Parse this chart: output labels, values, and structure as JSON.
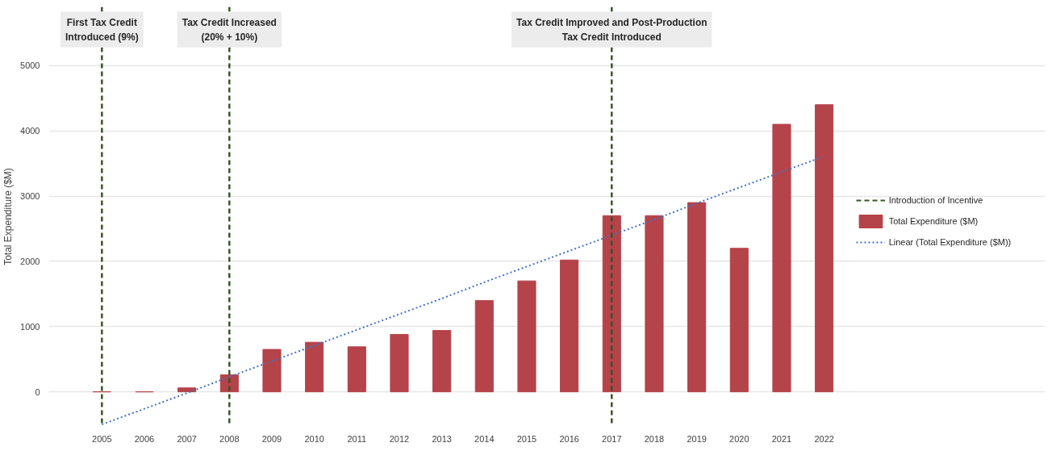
{
  "chart_data": {
    "type": "bar",
    "ylabel": "Total Expenditure ($M)",
    "categories": [
      "2005",
      "2006",
      "2007",
      "2008",
      "2009",
      "2010",
      "2011",
      "2012",
      "2013",
      "2014",
      "2015",
      "2016",
      "2017",
      "2018",
      "2019",
      "2020",
      "2021",
      "2022"
    ],
    "series": [
      {
        "name": "Introduction of Incentive",
        "type": "line",
        "line_style": "dashed",
        "color": "#375623",
        "values": [
          null,
          null,
          null,
          null,
          null,
          null,
          null,
          null,
          null,
          null,
          null,
          null,
          null,
          null,
          null,
          null,
          null,
          null
        ]
      },
      {
        "name": "Total Expenditure ($M)",
        "color": "#b5434a",
        "values": [
          0,
          0,
          60,
          260,
          650,
          760,
          690,
          880,
          940,
          1400,
          1700,
          2020,
          2700,
          2700,
          2900,
          2200,
          4100,
          4400
        ]
      },
      {
        "name": "Linear (Total Expenditure ($M))",
        "type": "line",
        "line_style": "dotted",
        "color": "#4472c4",
        "values": [
          -500,
          -260,
          -20,
          230,
          470,
          710,
          950,
          1190,
          1430,
          1680,
          1920,
          2160,
          2400,
          2640,
          2890,
          3130,
          3370,
          3610
        ]
      }
    ],
    "ylim": [
      -530,
      5900
    ],
    "yticks": [
      0,
      1000,
      2000,
      3000,
      4000,
      5000
    ],
    "grid": "y",
    "legend": "right",
    "ref_lines": [
      {
        "axis": "x",
        "value": "2005",
        "label": "First Tax Credit\nIntroduced (9%)",
        "color": "#375623",
        "line_style": "dashed"
      },
      {
        "axis": "x",
        "value": "2008",
        "label": "Tax Credit Increased\n(20% + 10%)",
        "color": "#375623",
        "line_style": "dashed"
      },
      {
        "axis": "x",
        "value": "2017",
        "label": "Tax Credit Improved and Post-Production\nTax Credit Introduced",
        "color": "#375623",
        "line_style": "dashed"
      }
    ]
  }
}
